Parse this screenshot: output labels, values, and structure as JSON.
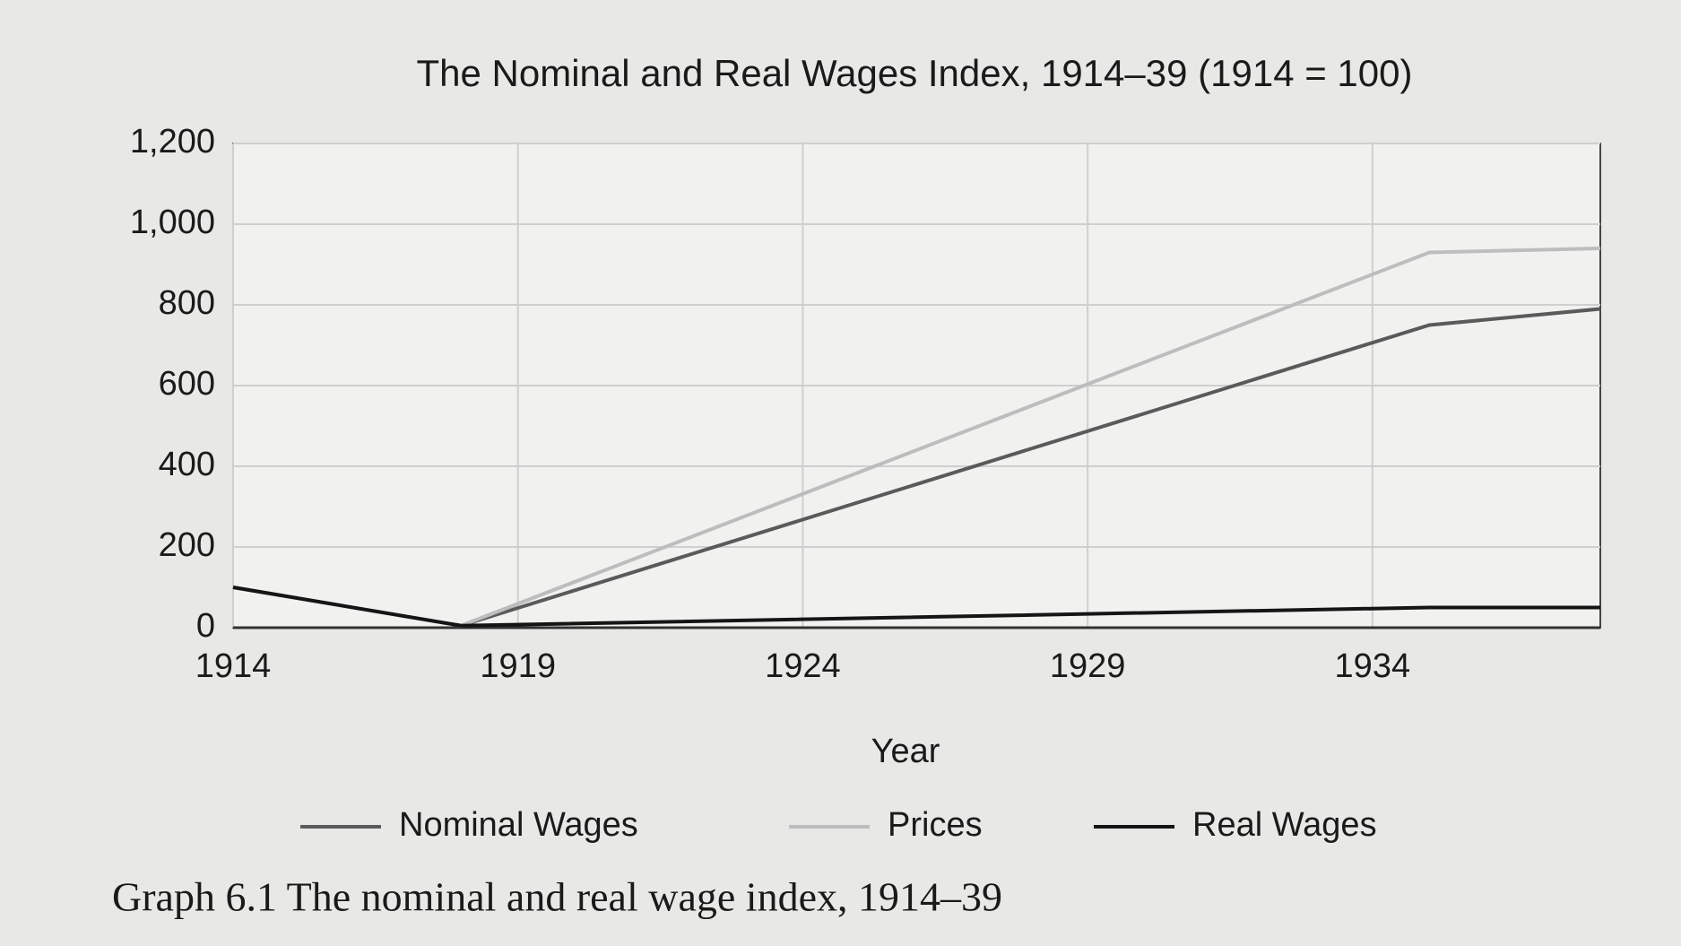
{
  "chart_data": {
    "type": "line",
    "title": "The Nominal and Real Wages Index, 1914–39 (1914 = 100)",
    "xlabel": "Year",
    "caption": "Graph 6.1 The nominal and real wage index, 1914–39",
    "x": [
      1914,
      1918,
      1935,
      1938
    ],
    "series": [
      {
        "name": "Nominal Wages",
        "color": "#5a5a5a",
        "values": [
          100,
          5,
          750,
          790
        ]
      },
      {
        "name": "Prices",
        "color": "#bdbdbd",
        "values": [
          100,
          5,
          930,
          940
        ]
      },
      {
        "name": "Real Wages",
        "color": "#151515",
        "values": [
          100,
          5,
          50,
          50
        ]
      }
    ],
    "xlim": [
      1914,
      1938
    ],
    "xticks": [
      1914,
      1919,
      1924,
      1929,
      1934
    ],
    "ylim": [
      0,
      1200
    ],
    "yticks": [
      0,
      200,
      400,
      600,
      800,
      {
        "value": 1000,
        "label": "1,000"
      },
      {
        "value": 1200,
        "label": "1,200"
      }
    ],
    "grid": true,
    "legend": "bottom"
  }
}
